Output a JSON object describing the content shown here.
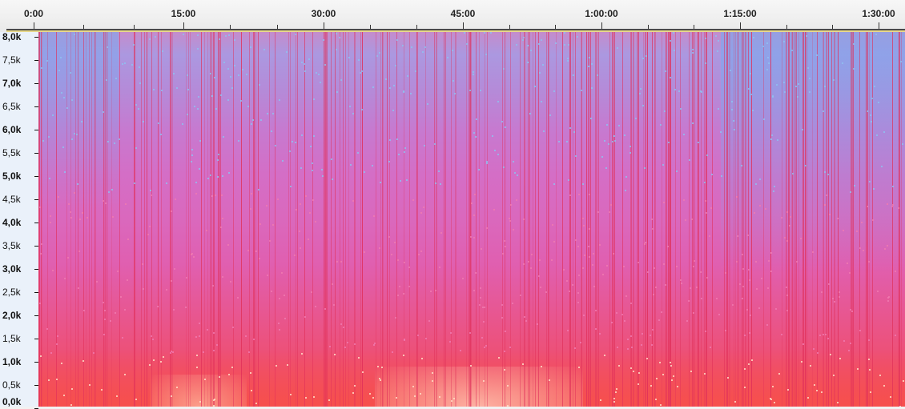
{
  "timeline": {
    "ticks": [
      "0:00",
      "15:00",
      "30:00",
      "45:00",
      "1:00:00",
      "1:15:00",
      "1:30:00"
    ]
  },
  "frequency_axis": {
    "labels": [
      "8,0k",
      "7,5k",
      "7,0k",
      "6,5k",
      "6,0k",
      "5,5k",
      "5,0k",
      "4,5k",
      "4,0k",
      "3,5k",
      "3,0k",
      "2,5k",
      "2,0k",
      "1,5k",
      "1,0k",
      "0,5k",
      "0,0k"
    ],
    "bold_labels": [
      "8,0k",
      "7,0k",
      "6,0k",
      "5,0k",
      "4,0k",
      "3,0k",
      "2,0k",
      "1,0k",
      "0,0k"
    ]
  },
  "colors": {
    "high_freq": "#ab98e0",
    "mid_freq": "#da68bd",
    "low_freq": "#f24d5e",
    "streak": "#e0305a",
    "highlight": "#ffe0c8"
  }
}
